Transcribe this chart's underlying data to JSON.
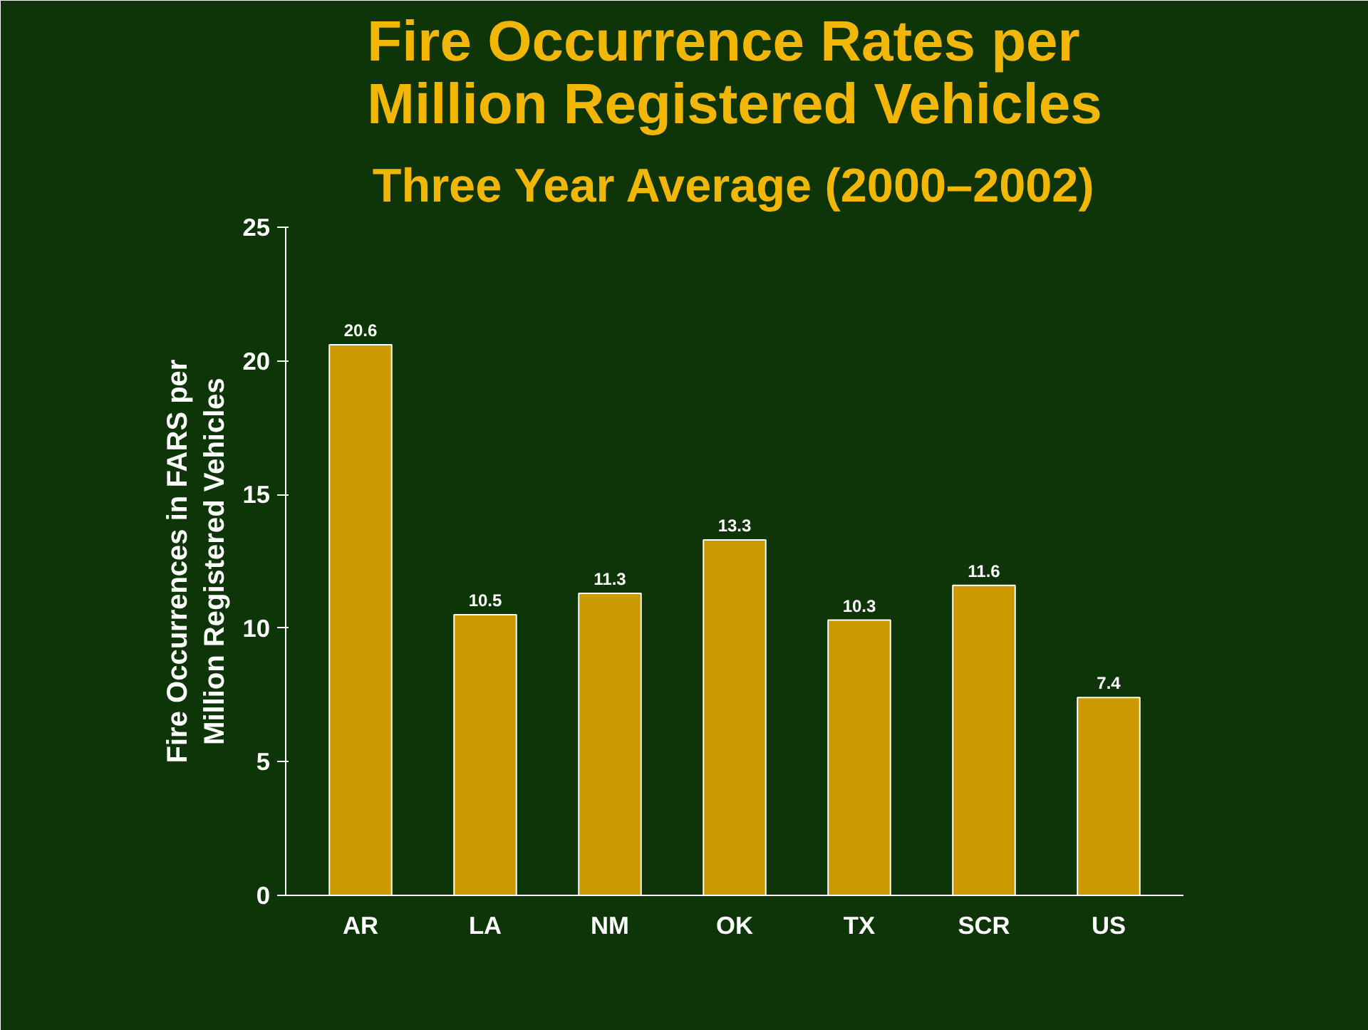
{
  "chart_data": {
    "type": "bar",
    "title": "Fire Occurrence Rates per\nMillion Registered Vehicles",
    "subtitle": "Three Year Average (2000–2002)",
    "ylabel": "Fire Occurrences in FARS per\nMillion Registered Vehicles",
    "categories": [
      "AR",
      "LA",
      "NM",
      "OK",
      "TX",
      "SCR",
      "US"
    ],
    "values": [
      20.6,
      10.5,
      11.3,
      13.3,
      10.3,
      11.6,
      7.4
    ],
    "color": "#cc9900",
    "ylim": [
      0,
      25
    ],
    "yticks": [
      0,
      5,
      10,
      15,
      20,
      25
    ],
    "grid": false,
    "data_labels": true
  }
}
